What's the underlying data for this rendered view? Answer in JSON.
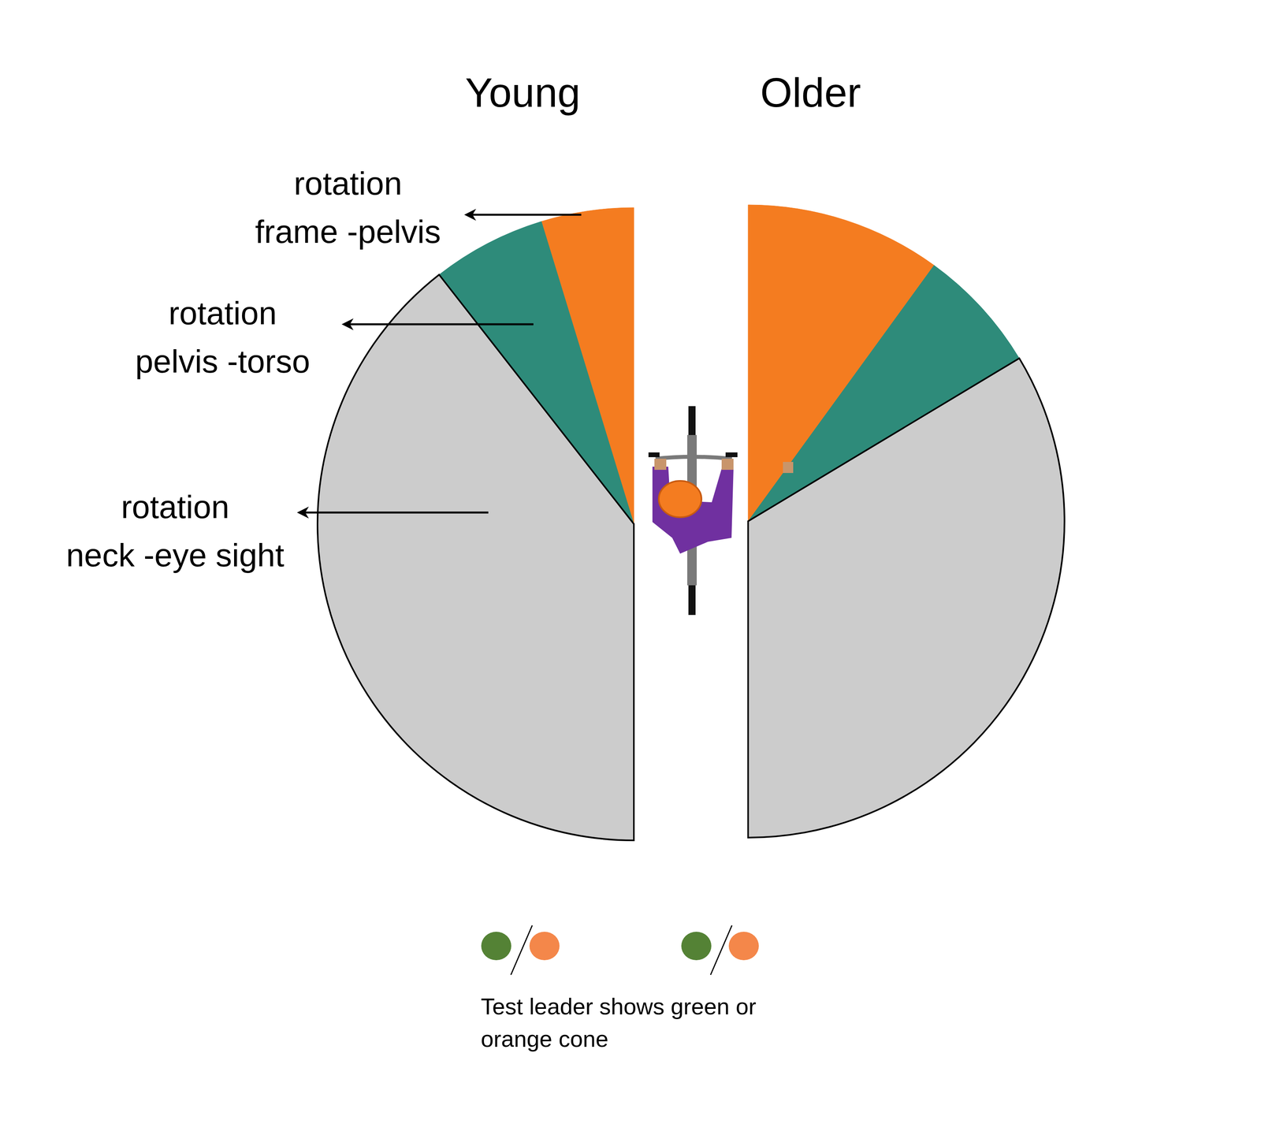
{
  "chart_data": {
    "type": "half_pie",
    "categories": [
      "rotation\nframe -pelvis",
      "rotation\npelvis -torso",
      "rotation\nneck -eye sight"
    ],
    "colors": [
      "#f47c20",
      "#2e8b7a",
      "#cccccc"
    ],
    "series": [
      {
        "name": "Young",
        "values": [
          17,
          21,
          142
        ]
      },
      {
        "name": "Older",
        "values": [
          36,
          23,
          121
        ]
      }
    ],
    "note": "Test leader shows green or\norange cone"
  }
}
